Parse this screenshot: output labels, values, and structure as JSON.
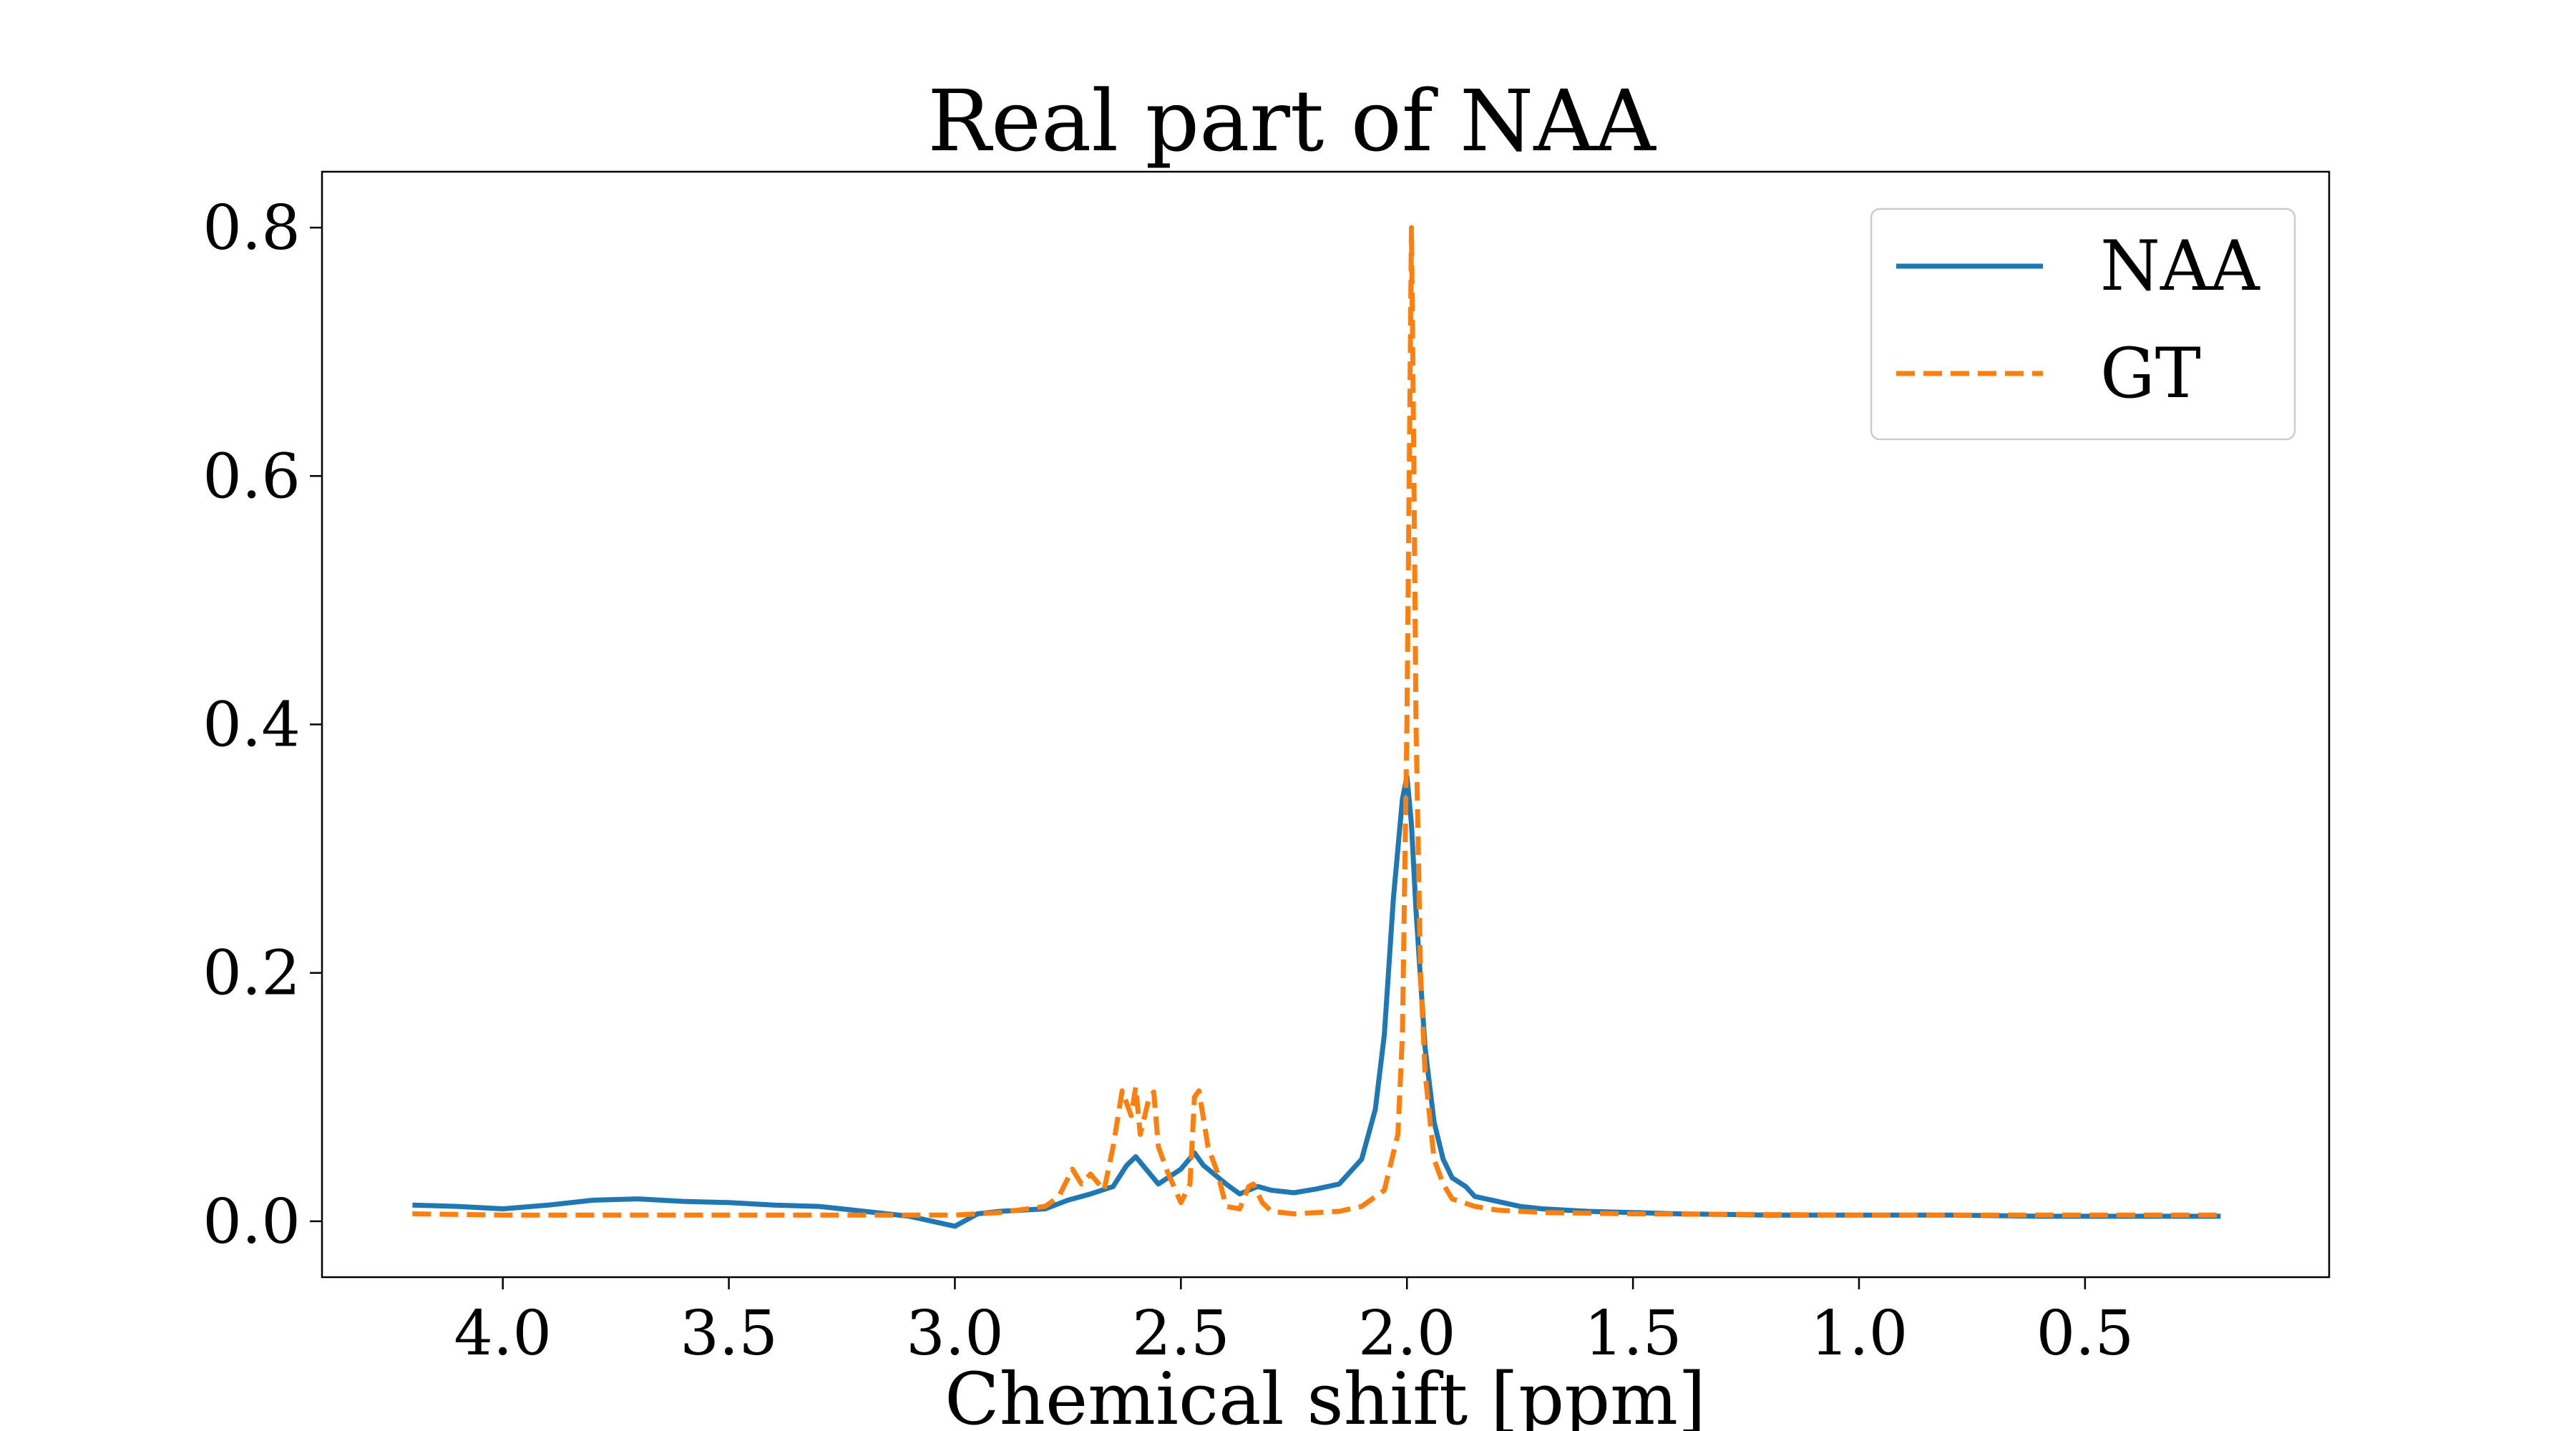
{
  "chart_data": {
    "type": "line",
    "title": "Real part of NAA",
    "xlabel": "Chemical shift [ppm]",
    "ylabel": "",
    "xlim": [
      4.4,
      -0.04
    ],
    "ylim": [
      -0.045,
      0.845
    ],
    "x_reversed": true,
    "xticks": [
      4.0,
      3.5,
      3.0,
      2.5,
      2.0,
      1.5,
      1.0,
      0.5
    ],
    "xtick_labels": [
      "4.0",
      "3.5",
      "3.0",
      "2.5",
      "2.0",
      "1.5",
      "1.0",
      "0.5"
    ],
    "yticks": [
      0.0,
      0.2,
      0.4,
      0.6,
      0.8
    ],
    "ytick_labels": [
      "0.0",
      "0.2",
      "0.4",
      "0.6",
      "0.8"
    ],
    "grid": false,
    "legend_position": "top-right",
    "series": [
      {
        "name": "NAA",
        "color": "#1f77b4",
        "style": "solid",
        "x": [
          4.2,
          4.1,
          4.0,
          3.9,
          3.8,
          3.7,
          3.6,
          3.5,
          3.4,
          3.3,
          3.2,
          3.1,
          3.05,
          3.0,
          2.95,
          2.9,
          2.85,
          2.8,
          2.75,
          2.7,
          2.65,
          2.62,
          2.6,
          2.55,
          2.5,
          2.47,
          2.45,
          2.4,
          2.37,
          2.33,
          2.3,
          2.25,
          2.2,
          2.15,
          2.1,
          2.07,
          2.05,
          2.03,
          2.01,
          2.0,
          1.99,
          1.98,
          1.96,
          1.94,
          1.92,
          1.9,
          1.87,
          1.85,
          1.8,
          1.75,
          1.7,
          1.65,
          1.6,
          1.5,
          1.4,
          1.2,
          1.0,
          0.8,
          0.6,
          0.4,
          0.2
        ],
        "y": [
          0.013,
          0.012,
          0.01,
          0.013,
          0.017,
          0.018,
          0.016,
          0.015,
          0.013,
          0.012,
          0.008,
          0.004,
          0.0,
          -0.004,
          0.006,
          0.008,
          0.009,
          0.01,
          0.017,
          0.022,
          0.028,
          0.045,
          0.052,
          0.03,
          0.042,
          0.055,
          0.045,
          0.03,
          0.022,
          0.028,
          0.025,
          0.023,
          0.026,
          0.03,
          0.05,
          0.09,
          0.15,
          0.26,
          0.34,
          0.358,
          0.32,
          0.25,
          0.14,
          0.08,
          0.05,
          0.035,
          0.028,
          0.02,
          0.016,
          0.012,
          0.01,
          0.009,
          0.008,
          0.007,
          0.006,
          0.005,
          0.005,
          0.005,
          0.004,
          0.004,
          0.004
        ]
      },
      {
        "name": "GT",
        "color": "#ff7f0e",
        "style": "dashed",
        "x": [
          4.2,
          4.0,
          3.5,
          3.0,
          2.9,
          2.8,
          2.77,
          2.74,
          2.72,
          2.7,
          2.67,
          2.65,
          2.63,
          2.61,
          2.6,
          2.59,
          2.57,
          2.56,
          2.55,
          2.53,
          2.5,
          2.48,
          2.47,
          2.46,
          2.44,
          2.42,
          2.4,
          2.37,
          2.35,
          2.34,
          2.32,
          2.3,
          2.25,
          2.15,
          2.1,
          2.05,
          2.02,
          2.01,
          2.0,
          1.995,
          1.99,
          1.985,
          1.98,
          1.97,
          1.96,
          1.94,
          1.92,
          1.9,
          1.85,
          1.8,
          1.7,
          1.5,
          1.0,
          0.5,
          0.2
        ],
        "y": [
          0.006,
          0.005,
          0.005,
          0.005,
          0.007,
          0.012,
          0.02,
          0.042,
          0.03,
          0.038,
          0.025,
          0.06,
          0.105,
          0.085,
          0.108,
          0.07,
          0.1,
          0.104,
          0.06,
          0.04,
          0.015,
          0.03,
          0.1,
          0.105,
          0.06,
          0.04,
          0.012,
          0.01,
          0.028,
          0.03,
          0.015,
          0.008,
          0.006,
          0.008,
          0.012,
          0.025,
          0.07,
          0.15,
          0.4,
          0.6,
          0.8,
          0.62,
          0.4,
          0.2,
          0.12,
          0.05,
          0.03,
          0.018,
          0.012,
          0.009,
          0.007,
          0.006,
          0.005,
          0.005,
          0.005
        ]
      }
    ]
  }
}
